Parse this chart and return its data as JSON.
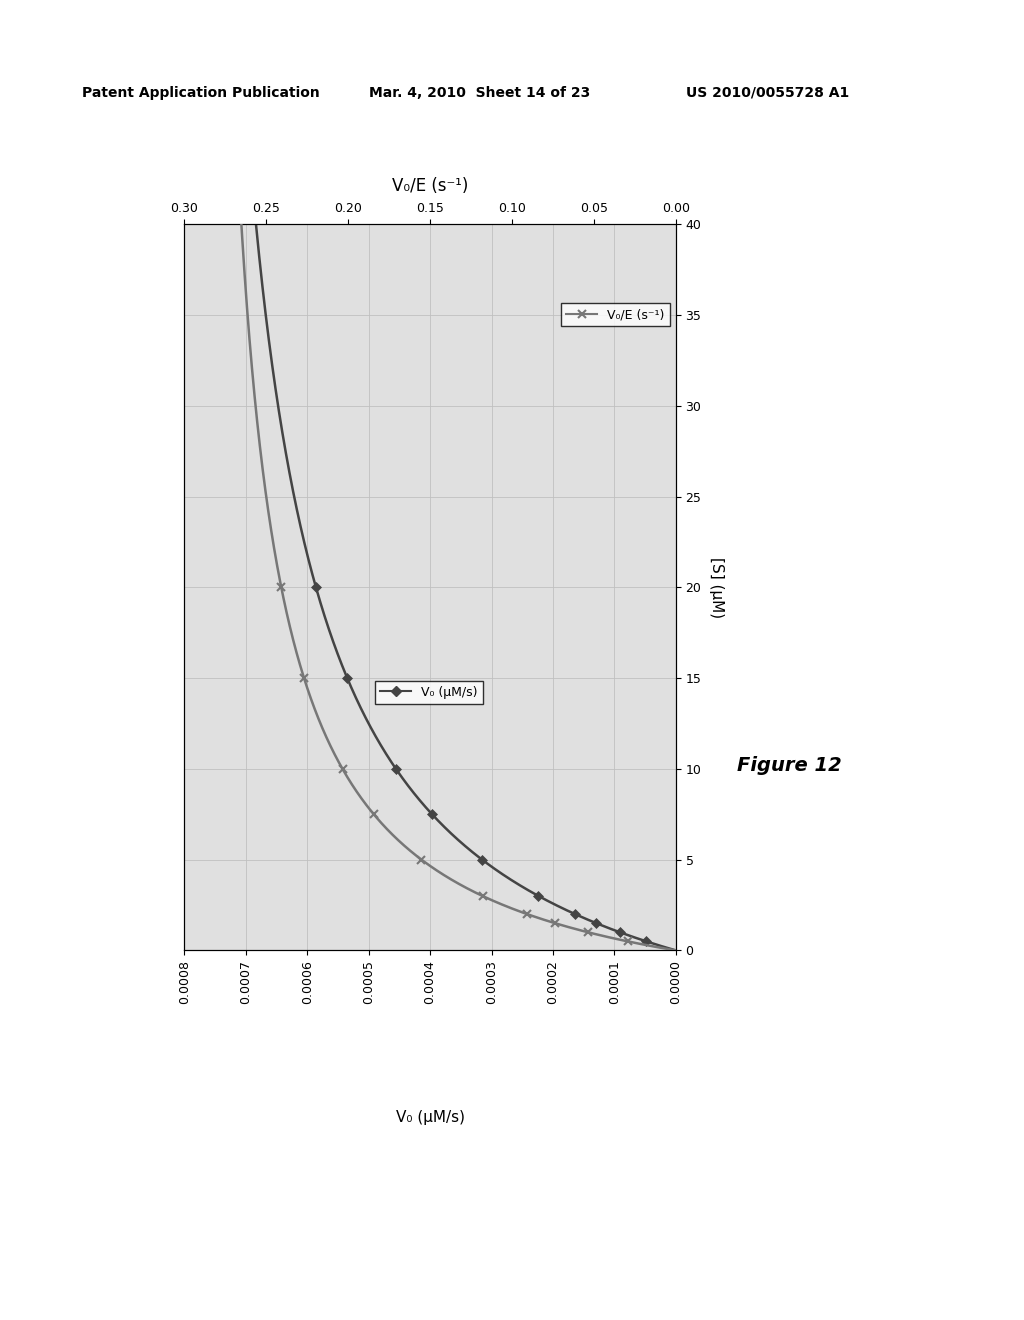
{
  "header_left": "Patent Application Publication",
  "header_mid": "Mar. 4, 2010  Sheet 14 of 23",
  "header_right": "US 2010/0055728 A1",
  "figure_caption": "Figure 12",
  "s_label": "[S] (μM)",
  "v0_label": "V₀ (μM/s)",
  "ve_label": "V₀/E (s⁻¹)",
  "legend1": "V₀ (μM/s)",
  "legend2": "V₀/E (s⁻¹)",
  "S_data": [
    0.5,
    1.0,
    1.5,
    2.0,
    3.0,
    5.0,
    7.5,
    10.0,
    15.0,
    20.0
  ],
  "Km1": 8.0,
  "Vmax1": 0.00082,
  "Km2": 4.5,
  "Vmax2": 0.295,
  "color1": "#444444",
  "color2": "#777777",
  "bg_color": "#e0e0e0",
  "grid_color": "#c0c0c0",
  "fig_width": 10.24,
  "fig_height": 13.2
}
